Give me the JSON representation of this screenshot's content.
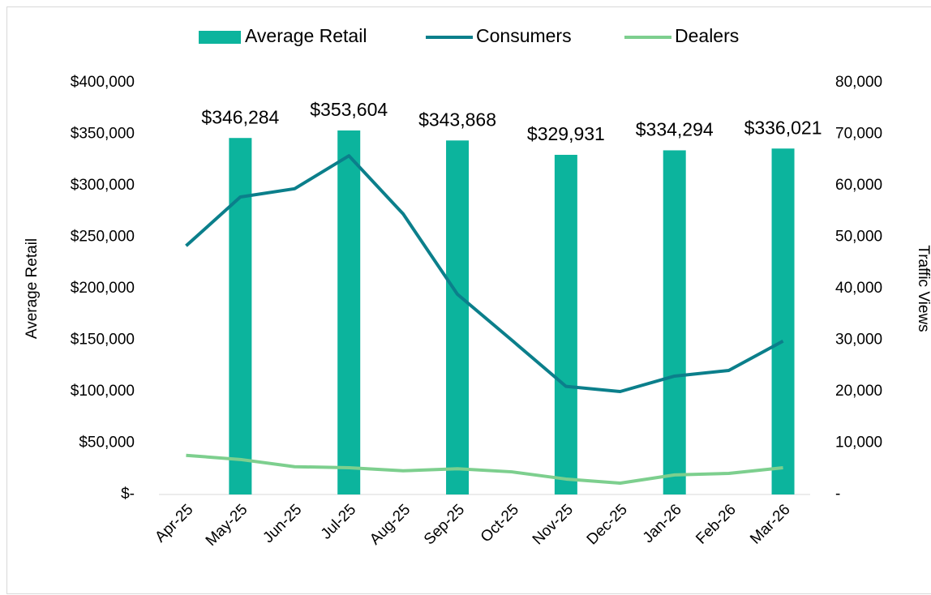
{
  "chart_data": {
    "type": "bar",
    "categories": [
      "Apr-25",
      "May-25",
      "Jun-25",
      "Jul-25",
      "Aug-25",
      "Sep-25",
      "Oct-25",
      "Nov-25",
      "Dec-25",
      "Jan-26",
      "Feb-26",
      "Mar-26"
    ],
    "series": [
      {
        "name": "Average Retail",
        "type": "bar",
        "color": "#0cb49d",
        "values": [
          null,
          346284,
          null,
          353604,
          null,
          343868,
          null,
          329931,
          null,
          334294,
          null,
          336021
        ],
        "value_labels": [
          null,
          "$346,284",
          null,
          "$353,604",
          null,
          "$343,868",
          null,
          "$329,931",
          null,
          "$334,294",
          null,
          "$336,021"
        ]
      },
      {
        "name": "Consumers",
        "type": "line",
        "axis": "y2",
        "color": "#0b7f8b",
        "values": [
          48300,
          57800,
          59400,
          65800,
          54500,
          38900,
          30000,
          21000,
          20000,
          23000,
          24100,
          29800
        ]
      },
      {
        "name": "Dealers",
        "type": "line",
        "axis": "y2",
        "color": "#7dcf8e",
        "values": [
          7600,
          6800,
          5400,
          5200,
          4600,
          5000,
          4400,
          3000,
          2200,
          3800,
          4100,
          5200
        ]
      }
    ],
    "ylabel": "Average Retail",
    "y2label": "Traffic Views",
    "ylim": [
      0,
      400000
    ],
    "yticks": [
      {
        "value": 0,
        "label": "$-"
      },
      {
        "value": 50000,
        "label": "$50,000"
      },
      {
        "value": 100000,
        "label": "$100,000"
      },
      {
        "value": 150000,
        "label": "$150,000"
      },
      {
        "value": 200000,
        "label": "$200,000"
      },
      {
        "value": 250000,
        "label": "$250,000"
      },
      {
        "value": 300000,
        "label": "$300,000"
      },
      {
        "value": 350000,
        "label": "$350,000"
      },
      {
        "value": 400000,
        "label": "$400,000"
      }
    ],
    "y2lim": [
      0,
      80000
    ],
    "y2ticks": [
      {
        "value": 0,
        "label": "-"
      },
      {
        "value": 10000,
        "label": "10,000"
      },
      {
        "value": 20000,
        "label": "20,000"
      },
      {
        "value": 30000,
        "label": "30,000"
      },
      {
        "value": 40000,
        "label": "40,000"
      },
      {
        "value": 50000,
        "label": "50,000"
      },
      {
        "value": 60000,
        "label": "60,000"
      },
      {
        "value": 70000,
        "label": "70,000"
      },
      {
        "value": 80000,
        "label": "80,000"
      }
    ],
    "legend": "top"
  }
}
